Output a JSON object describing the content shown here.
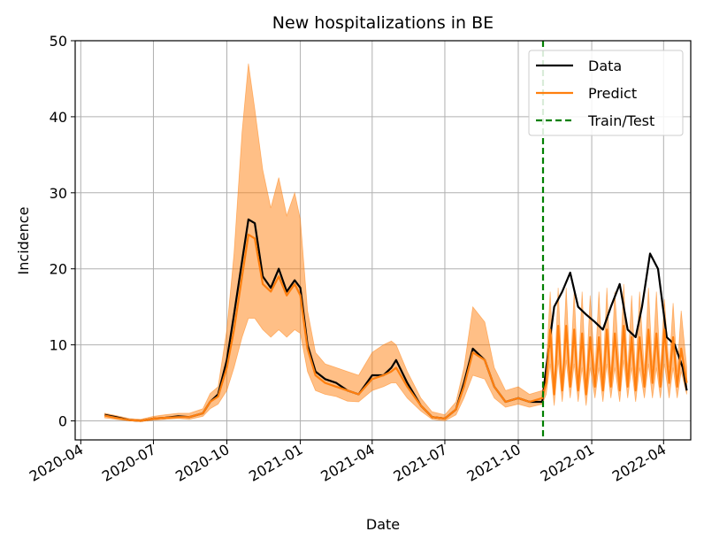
{
  "chart_data": {
    "type": "line",
    "title": "New hospitalizations in BE",
    "xlabel": "Date",
    "ylabel": "Incidence",
    "xlim": [
      "2020-03-25",
      "2022-05-05"
    ],
    "ylim": [
      -2.5,
      50
    ],
    "y_ticks": [
      0,
      10,
      20,
      30,
      40,
      50
    ],
    "x_ticks": [
      "2020-04",
      "2020-07",
      "2020-10",
      "2021-01",
      "2021-04",
      "2021-07",
      "2021-10",
      "2022-01",
      "2022-04"
    ],
    "x_tick_dates": [
      "2020-04-01",
      "2020-07-01",
      "2020-10-01",
      "2021-01-01",
      "2021-04-01",
      "2021-07-01",
      "2021-10-01",
      "2022-01-01",
      "2022-04-01"
    ],
    "grid": true,
    "legend_position": "top-right",
    "train_test_split": "2021-11-01",
    "series": [
      {
        "name": "Data",
        "color": "#000000",
        "x": [
          "2020-05-01",
          "2020-05-15",
          "2020-06-01",
          "2020-06-15",
          "2020-07-01",
          "2020-07-15",
          "2020-08-01",
          "2020-08-15",
          "2020-09-01",
          "2020-09-10",
          "2020-09-20",
          "2020-10-01",
          "2020-10-10",
          "2020-10-20",
          "2020-10-28",
          "2020-11-05",
          "2020-11-15",
          "2020-11-25",
          "2020-12-05",
          "2020-12-15",
          "2020-12-25",
          "2021-01-01",
          "2021-01-10",
          "2021-01-20",
          "2021-02-01",
          "2021-02-15",
          "2021-03-01",
          "2021-03-15",
          "2021-04-01",
          "2021-04-15",
          "2021-04-25",
          "2021-05-01",
          "2021-05-15",
          "2021-06-01",
          "2021-06-15",
          "2021-07-01",
          "2021-07-15",
          "2021-07-25",
          "2021-08-05",
          "2021-08-20",
          "2021-09-01",
          "2021-09-15",
          "2021-10-01",
          "2021-10-15",
          "2021-10-31",
          "2021-11-05",
          "2021-11-15",
          "2021-11-25",
          "2021-12-05",
          "2021-12-15",
          "2021-12-25",
          "2022-01-05",
          "2022-01-15",
          "2022-01-25",
          "2022-02-05",
          "2022-02-15",
          "2022-02-25",
          "2022-03-05",
          "2022-03-15",
          "2022-03-25",
          "2022-04-05",
          "2022-04-15",
          "2022-04-25",
          "2022-04-30"
        ],
        "values": [
          0.8,
          0.5,
          0.1,
          0.0,
          0.3,
          0.4,
          0.6,
          0.5,
          1.0,
          2.5,
          3.5,
          8.0,
          14.0,
          21.0,
          26.5,
          26.0,
          19.0,
          17.5,
          20.0,
          17.0,
          18.5,
          17.5,
          10.0,
          6.5,
          5.5,
          5.0,
          4.0,
          3.5,
          6.0,
          6.0,
          7.0,
          8.0,
          5.0,
          2.0,
          0.5,
          0.3,
          1.5,
          5.0,
          9.5,
          8.0,
          4.5,
          2.5,
          3.0,
          2.5,
          2.5,
          7.0,
          15.0,
          17.0,
          19.5,
          15.0,
          14.0,
          13.0,
          12.0,
          15.0,
          18.0,
          12.0,
          11.0,
          15.0,
          22.0,
          20.0,
          11.0,
          10.0,
          7.0,
          4.0
        ]
      },
      {
        "name": "Predict",
        "color": "#ff7f0e",
        "x": [
          "2020-05-01",
          "2020-05-15",
          "2020-06-01",
          "2020-06-15",
          "2020-07-01",
          "2020-07-15",
          "2020-08-01",
          "2020-08-15",
          "2020-09-01",
          "2020-09-10",
          "2020-09-20",
          "2020-10-01",
          "2020-10-10",
          "2020-10-20",
          "2020-10-28",
          "2020-11-05",
          "2020-11-15",
          "2020-11-25",
          "2020-12-05",
          "2020-12-15",
          "2020-12-25",
          "2021-01-01",
          "2021-01-10",
          "2021-01-20",
          "2021-02-01",
          "2021-02-15",
          "2021-03-01",
          "2021-03-15",
          "2021-04-01",
          "2021-04-15",
          "2021-04-25",
          "2021-05-01",
          "2021-05-15",
          "2021-06-01",
          "2021-06-15",
          "2021-07-01",
          "2021-07-15",
          "2021-07-25",
          "2021-08-05",
          "2021-08-20",
          "2021-09-01",
          "2021-09-15",
          "2021-10-01",
          "2021-10-15",
          "2021-10-31",
          "2021-11-05",
          "2021-11-10",
          "2021-11-15",
          "2021-11-20",
          "2021-11-25",
          "2021-11-30",
          "2021-12-05",
          "2021-12-10",
          "2021-12-15",
          "2021-12-20",
          "2021-12-25",
          "2021-12-30",
          "2022-01-05",
          "2022-01-10",
          "2022-01-15",
          "2022-01-20",
          "2022-01-25",
          "2022-01-30",
          "2022-02-05",
          "2022-02-10",
          "2022-02-15",
          "2022-02-20",
          "2022-02-25",
          "2022-03-02",
          "2022-03-08",
          "2022-03-13",
          "2022-03-18",
          "2022-03-23",
          "2022-03-28",
          "2022-04-02",
          "2022-04-08",
          "2022-04-13",
          "2022-04-18",
          "2022-04-23",
          "2022-04-30"
        ],
        "values": [
          0.7,
          0.4,
          0.1,
          0.0,
          0.3,
          0.4,
          0.5,
          0.5,
          1.0,
          2.5,
          3.2,
          7.0,
          12.0,
          19.0,
          24.5,
          24.0,
          18.0,
          17.0,
          19.0,
          16.5,
          18.0,
          16.5,
          9.5,
          6.0,
          5.0,
          4.5,
          4.0,
          3.5,
          5.5,
          6.0,
          6.5,
          7.0,
          4.5,
          2.0,
          0.5,
          0.3,
          1.5,
          4.5,
          9.0,
          8.0,
          4.5,
          2.5,
          3.0,
          2.5,
          3.0,
          5.0,
          12.0,
          3.5,
          12.5,
          4.0,
          12.5,
          4.5,
          12.0,
          4.0,
          11.5,
          3.5,
          11.0,
          4.5,
          11.0,
          4.0,
          12.0,
          4.5,
          11.5,
          4.0,
          12.5,
          4.5,
          11.0,
          4.0,
          11.0,
          4.5,
          12.0,
          5.0,
          11.5,
          4.5,
          12.0,
          5.0,
          11.0,
          4.5,
          9.5,
          5.0
        ]
      }
    ],
    "band": {
      "name": "Predict interval",
      "color": "#ff7f0e",
      "x": [
        "2020-05-01",
        "2020-05-15",
        "2020-06-01",
        "2020-06-15",
        "2020-07-01",
        "2020-07-15",
        "2020-08-01",
        "2020-08-15",
        "2020-09-01",
        "2020-09-10",
        "2020-09-20",
        "2020-10-01",
        "2020-10-10",
        "2020-10-20",
        "2020-10-28",
        "2020-11-05",
        "2020-11-15",
        "2020-11-25",
        "2020-12-05",
        "2020-12-15",
        "2020-12-25",
        "2021-01-01",
        "2021-01-10",
        "2021-01-20",
        "2021-02-01",
        "2021-02-15",
        "2021-03-01",
        "2021-03-15",
        "2021-04-01",
        "2021-04-15",
        "2021-04-25",
        "2021-05-01",
        "2021-05-15",
        "2021-06-01",
        "2021-06-15",
        "2021-07-01",
        "2021-07-15",
        "2021-07-25",
        "2021-08-05",
        "2021-08-20",
        "2021-09-01",
        "2021-09-15",
        "2021-10-01",
        "2021-10-15",
        "2021-10-31",
        "2021-11-05",
        "2021-11-10",
        "2021-11-15",
        "2021-11-20",
        "2021-11-25",
        "2021-11-30",
        "2021-12-05",
        "2021-12-10",
        "2021-12-15",
        "2021-12-20",
        "2021-12-25",
        "2021-12-30",
        "2022-01-05",
        "2022-01-10",
        "2022-01-15",
        "2022-01-20",
        "2022-01-25",
        "2022-01-30",
        "2022-02-05",
        "2022-02-10",
        "2022-02-15",
        "2022-02-20",
        "2022-02-25",
        "2022-03-02",
        "2022-03-08",
        "2022-03-13",
        "2022-03-18",
        "2022-03-23",
        "2022-03-28",
        "2022-04-02",
        "2022-04-08",
        "2022-04-13",
        "2022-04-18",
        "2022-04-23",
        "2022-04-30"
      ],
      "upper": [
        1.0,
        0.7,
        0.3,
        0.2,
        0.6,
        0.8,
        1.0,
        1.0,
        1.6,
        3.6,
        4.5,
        12.0,
        22.0,
        38.0,
        47.0,
        41.0,
        33.0,
        28.0,
        32.0,
        27.0,
        30.0,
        26.5,
        14.5,
        9.0,
        7.5,
        7.0,
        6.5,
        6.0,
        9.0,
        10.0,
        10.5,
        10.0,
        6.5,
        3.0,
        1.2,
        0.8,
        2.5,
        7.0,
        15.0,
        13.0,
        7.0,
        4.0,
        4.5,
        3.5,
        4.0,
        7.0,
        17.0,
        5.0,
        17.5,
        5.5,
        17.5,
        6.0,
        17.0,
        5.5,
        17.0,
        5.0,
        16.5,
        6.5,
        17.0,
        6.0,
        17.5,
        6.0,
        17.0,
        6.0,
        18.0,
        6.5,
        16.5,
        6.0,
        17.0,
        6.5,
        17.5,
        7.0,
        17.0,
        6.5,
        16.0,
        7.0,
        15.5,
        6.5,
        14.5,
        7.0
      ],
      "lower": [
        0.4,
        0.2,
        0.0,
        -0.1,
        0.1,
        0.2,
        0.3,
        0.2,
        0.6,
        1.6,
        2.2,
        4.0,
        7.0,
        11.0,
        13.5,
        13.5,
        12.0,
        11.0,
        12.0,
        11.0,
        12.0,
        11.5,
        6.5,
        4.0,
        3.5,
        3.2,
        2.6,
        2.5,
        4.0,
        4.5,
        5.0,
        5.0,
        3.0,
        1.3,
        0.2,
        0.0,
        0.8,
        3.0,
        6.0,
        5.5,
        3.0,
        1.8,
        2.2,
        1.8,
        2.2,
        3.5,
        7.5,
        2.0,
        8.0,
        2.5,
        8.0,
        3.0,
        7.5,
        2.5,
        7.0,
        2.0,
        7.0,
        3.0,
        7.0,
        2.5,
        7.5,
        3.0,
        7.0,
        2.5,
        8.0,
        3.0,
        7.0,
        2.5,
        7.0,
        3.0,
        7.5,
        3.0,
        7.0,
        3.0,
        7.5,
        3.0,
        7.0,
        3.0,
        6.5,
        3.5
      ]
    },
    "legend_entries": [
      {
        "label": "Data",
        "color": "#000000",
        "style": "solid"
      },
      {
        "label": "Predict",
        "color": "#ff7f0e",
        "style": "solid"
      },
      {
        "label": "Train/Test",
        "color": "#008000",
        "style": "dashed"
      }
    ]
  }
}
